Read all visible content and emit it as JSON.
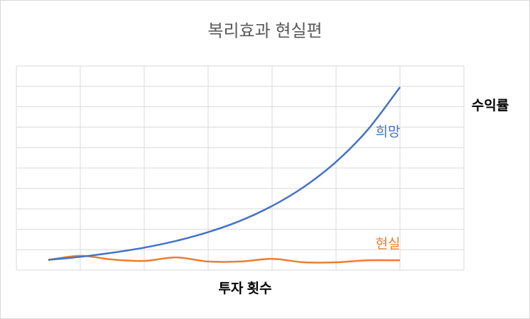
{
  "chart_data": {
    "type": "line",
    "title": "복리효과 현실편",
    "x_label": "투자 횟수",
    "y_label": "수익률",
    "x": [
      1,
      2,
      3,
      4,
      5,
      6,
      7,
      8,
      9,
      10,
      11,
      12
    ],
    "xlim": [
      0,
      14
    ],
    "xticks": [
      0,
      2,
      4,
      6,
      8,
      10,
      12,
      14
    ],
    "ylim": [
      0,
      10
    ],
    "yticks": [
      0,
      1,
      2,
      3,
      4,
      5,
      6,
      7,
      8,
      9,
      10
    ],
    "grid": true,
    "smooth": true,
    "series": [
      {
        "name": "희망",
        "color": "#4472c4",
        "values": [
          0.5,
          0.65,
          0.85,
          1.1,
          1.43,
          1.86,
          2.41,
          3.14,
          4.08,
          5.3,
          6.89,
          8.96
        ]
      },
      {
        "name": "현실",
        "color": "#ed7d31",
        "values": [
          0.5,
          0.7,
          0.52,
          0.45,
          0.62,
          0.42,
          0.42,
          0.55,
          0.38,
          0.38,
          0.48,
          0.48
        ]
      }
    ]
  }
}
